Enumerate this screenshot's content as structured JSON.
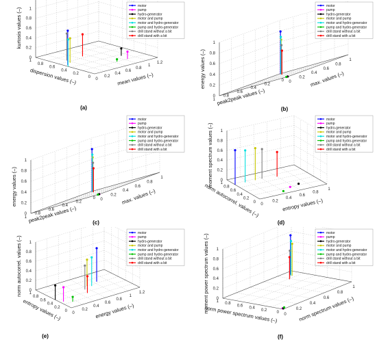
{
  "chart_data": [
    {
      "type": "scatter",
      "panel_label": "(a)",
      "xlabel": "mean values (–)",
      "ylabel": "dispersion values (–)",
      "zlabel": "kurtosis values (–)",
      "xlim": [
        0,
        1.2
      ],
      "ylim": [
        0,
        1
      ],
      "zlim": [
        0,
        1.2
      ],
      "xticks": [
        "0",
        "0.2",
        "0.4",
        "0.6",
        "0.8",
        "1",
        "1.2"
      ],
      "yticks": [
        "0",
        "0.2",
        "0.4",
        "0.6",
        "0.8",
        "1"
      ],
      "zticks": [
        "0",
        "0.2",
        "0.4",
        "0.6",
        "0.8",
        "1",
        "1.2"
      ],
      "grid": true,
      "legend_position": "top-right",
      "series": [
        {
          "name": "motor",
          "color": "#0000ff",
          "x": 0.05,
          "y": 0.5,
          "z": 0.7
        },
        {
          "name": "pump",
          "color": "#ff00ff",
          "x": 0.85,
          "y": 0.2,
          "z": 0.15
        },
        {
          "name": "hydro-generator",
          "color": "#000000",
          "x": 0.9,
          "y": 0.35,
          "z": 0.15
        },
        {
          "name": "motor and pump",
          "color": "#c8c800",
          "x": 0.15,
          "y": 0.55,
          "z": 0.5
        },
        {
          "name": "motor and hydro-generator",
          "color": "#00e0e0",
          "x": 0.0,
          "y": 0.45,
          "z": 0.55
        },
        {
          "name": "pump and hydro-generator",
          "color": "#00c000",
          "x": 0.65,
          "y": 0.2,
          "z": 0.05
        },
        {
          "name": "drill stand without a bit",
          "color": "#808080",
          "x": 0.2,
          "y": 0.65,
          "z": 0.55
        },
        {
          "name": "drill stand with a bit",
          "color": "#ff0000",
          "x": 0.5,
          "y": 0.65,
          "z": 0.45
        }
      ]
    },
    {
      "type": "scatter",
      "panel_label": "(b)",
      "xlabel": "max. values (–)",
      "ylabel": "peak2peak values (–)",
      "zlabel": "energy values (–)",
      "xlim": [
        0,
        1
      ],
      "ylim": [
        0,
        1
      ],
      "zlim": [
        0,
        1
      ],
      "xticks": [
        "0",
        "0.2",
        "0.4",
        "0.6",
        "0.8",
        "1"
      ],
      "yticks": [
        "0",
        "0.2",
        "0.4",
        "0.6",
        "0.8",
        "1"
      ],
      "zticks": [
        "0",
        "0.2",
        "0.4",
        "0.6",
        "0.8",
        "1"
      ],
      "grid": true,
      "legend_position": "top-right",
      "series": [
        {
          "name": "motor",
          "color": "#0000ff",
          "x": 0.9,
          "y": 0.9,
          "z": 0.8
        },
        {
          "name": "pump",
          "color": "#ff00ff",
          "x": 0.02,
          "y": 0.02,
          "z": 0.0
        },
        {
          "name": "hydro-generator",
          "color": "#000000",
          "x": 0.03,
          "y": 0.03,
          "z": 0.0
        },
        {
          "name": "motor and pump",
          "color": "#c8c800",
          "x": 0.82,
          "y": 0.82,
          "z": 0.65
        },
        {
          "name": "motor and hydro-generator",
          "color": "#00e0e0",
          "x": 0.86,
          "y": 0.86,
          "z": 0.7
        },
        {
          "name": "pump and hydro-generator",
          "color": "#00c000",
          "x": 0.02,
          "y": 0.04,
          "z": 0.0
        },
        {
          "name": "drill stand without a bit",
          "color": "#808080",
          "x": 0.78,
          "y": 0.78,
          "z": 0.55
        },
        {
          "name": "drill stand with a bit",
          "color": "#ff0000",
          "x": 0.72,
          "y": 0.72,
          "z": 0.45
        }
      ]
    },
    {
      "type": "scatter",
      "panel_label": "(c)",
      "xlabel": "max. values (–)",
      "ylabel": "peak2peak values (–)",
      "zlabel": "energy values (–)",
      "xlim": [
        0,
        1
      ],
      "ylim": [
        0,
        1
      ],
      "zlim": [
        0,
        1
      ],
      "xticks": [
        "0",
        "0.2",
        "0.4",
        "0.6",
        "0.8",
        "1"
      ],
      "yticks": [
        "0",
        "0.2",
        "0.4",
        "0.6",
        "0.8",
        "1"
      ],
      "zticks": [
        "0",
        "0.2",
        "0.4",
        "0.6",
        "0.8",
        "1"
      ],
      "grid": true,
      "legend_position": "top-right",
      "series": [
        {
          "name": "motor",
          "color": "#0000ff",
          "x": 0.9,
          "y": 0.9,
          "z": 0.8
        },
        {
          "name": "pump",
          "color": "#ff00ff",
          "x": 0.02,
          "y": 0.02,
          "z": 0.0
        },
        {
          "name": "hydro-generator",
          "color": "#000000",
          "x": 0.03,
          "y": 0.03,
          "z": 0.0
        },
        {
          "name": "motor and pump",
          "color": "#c8c800",
          "x": 0.82,
          "y": 0.82,
          "z": 0.65
        },
        {
          "name": "motor and hydro-generator",
          "color": "#00e0e0",
          "x": 0.86,
          "y": 0.86,
          "z": 0.7
        },
        {
          "name": "pump and hydro-generator",
          "color": "#00c000",
          "x": 0.02,
          "y": 0.04,
          "z": 0.0
        },
        {
          "name": "drill stand without a bit",
          "color": "#808080",
          "x": 0.78,
          "y": 0.78,
          "z": 0.55
        },
        {
          "name": "drill stand with a bit",
          "color": "#ff0000",
          "x": 0.72,
          "y": 0.72,
          "z": 0.45
        }
      ]
    },
    {
      "type": "scatter",
      "panel_label": "(d)",
      "xlabel": "entropy values (–)",
      "ylabel": "norm autocorrel. values (–)",
      "zlabel": "moment spectrum values (–)",
      "xlim": [
        0,
        1
      ],
      "ylim": [
        0,
        1
      ],
      "zlim": [
        0,
        1
      ],
      "xticks": [
        "0",
        "0.2",
        "0.4",
        "0.6",
        "0.8",
        "1"
      ],
      "yticks": [
        "0",
        "0.2",
        "0.4",
        "0.6",
        "0.8",
        "1"
      ],
      "zticks": [
        "0",
        "0.2",
        "0.4",
        "0.6",
        "0.8",
        "1"
      ],
      "grid": true,
      "legend_position": "top-right",
      "series": [
        {
          "name": "motor",
          "color": "#0000ff",
          "x": 0.0,
          "y": 0.75,
          "z": 0.7
        },
        {
          "name": "pump",
          "color": "#ff00ff",
          "x": 0.55,
          "y": 0.2,
          "z": 0.0
        },
        {
          "name": "hydro-generator",
          "color": "#000000",
          "x": 0.7,
          "y": 0.25,
          "z": 0.0
        },
        {
          "name": "motor and pump",
          "color": "#c8c800",
          "x": 0.3,
          "y": 0.75,
          "z": 0.65
        },
        {
          "name": "motor and hydro-generator",
          "color": "#00e0e0",
          "x": 0.15,
          "y": 0.75,
          "z": 0.65
        },
        {
          "name": "pump and hydro-generator",
          "color": "#00c000",
          "x": 0.4,
          "y": 0.1,
          "z": 0.0
        },
        {
          "name": "drill stand without a bit",
          "color": "#808080",
          "x": 0.4,
          "y": 0.75,
          "z": 0.6
        },
        {
          "name": "drill stand with a bit",
          "color": "#ff0000",
          "x": 0.6,
          "y": 0.7,
          "z": 0.5
        }
      ]
    },
    {
      "type": "scatter",
      "panel_label": "(e)",
      "xlabel": "energy values (–)",
      "ylabel": "entropy values (–)",
      "zlabel": "norm autocorrel. values (–)",
      "xlim": [
        0,
        1.2
      ],
      "ylim": [
        0,
        1
      ],
      "zlim": [
        0,
        1
      ],
      "xticks": [
        "0",
        "0.2",
        "0.4",
        "0.6",
        "0.8",
        "1",
        "1.2"
      ],
      "yticks": [
        "0",
        "0.2",
        "0.4",
        "0.6",
        "0.8",
        "1"
      ],
      "zticks": [
        "0",
        "0.2",
        "0.4",
        "0.6",
        "0.8",
        "1"
      ],
      "grid": true,
      "legend_position": "top-right",
      "series": [
        {
          "name": "motor",
          "color": "#0000ff",
          "x": 0.85,
          "y": 0.65,
          "z": 0.7
        },
        {
          "name": "pump",
          "color": "#ff00ff",
          "x": 0.05,
          "y": 0.3,
          "z": 0.3
        },
        {
          "name": "hydro-generator",
          "color": "#000000",
          "x": 0.0,
          "y": 0.45,
          "z": 0.3
        },
        {
          "name": "motor and pump",
          "color": "#c8c800",
          "x": 0.65,
          "y": 0.6,
          "z": 0.55
        },
        {
          "name": "motor and hydro-generator",
          "color": "#00e0e0",
          "x": 0.7,
          "y": 0.55,
          "z": 0.6
        },
        {
          "name": "pump and hydro-generator",
          "color": "#00c000",
          "x": 0.15,
          "y": 0.2,
          "z": 0.1
        },
        {
          "name": "drill stand without a bit",
          "color": "#808080",
          "x": 0.55,
          "y": 0.5,
          "z": 0.5
        },
        {
          "name": "drill stand with a bit",
          "color": "#ff0000",
          "x": 0.5,
          "y": 0.35,
          "z": 0.35
        }
      ]
    },
    {
      "type": "scatter",
      "panel_label": "(f)",
      "xlabel": "norm spectrum values (–)",
      "ylabel": "norm power spectrum values (–)",
      "zlabel": "moment power spectrum values (–)",
      "xlim": [
        0,
        1
      ],
      "ylim": [
        0,
        1
      ],
      "zlim": [
        0,
        1
      ],
      "xticks": [
        "0",
        "0.2",
        "0.4",
        "0.6",
        "0.8",
        "1"
      ],
      "yticks": [
        "0",
        "0.2",
        "0.4",
        "0.6",
        "0.8",
        "1"
      ],
      "zticks": [
        "0",
        "0.2",
        "0.4",
        "0.6",
        "0.8",
        "1"
      ],
      "grid": true,
      "legend_position": "top-right",
      "series": [
        {
          "name": "motor",
          "color": "#0000ff",
          "x": 0.9,
          "y": 0.9,
          "z": 0.8
        },
        {
          "name": "pump",
          "color": "#ff00ff",
          "x": 0.02,
          "y": 0.03,
          "z": 0.0
        },
        {
          "name": "hydro-generator",
          "color": "#000000",
          "x": 0.02,
          "y": 0.02,
          "z": 0.0
        },
        {
          "name": "motor and pump",
          "color": "#c8c800",
          "x": 0.88,
          "y": 0.85,
          "z": 0.65
        },
        {
          "name": "motor and hydro-generator",
          "color": "#00e0e0",
          "x": 0.88,
          "y": 0.87,
          "z": 0.7
        },
        {
          "name": "pump and hydro-generator",
          "color": "#00c000",
          "x": 0.05,
          "y": 0.04,
          "z": 0.0
        },
        {
          "name": "drill stand without a bit",
          "color": "#808080",
          "x": 0.82,
          "y": 0.82,
          "z": 0.55
        },
        {
          "name": "drill stand with a bit",
          "color": "#ff0000",
          "x": 0.78,
          "y": 0.78,
          "z": 0.45
        }
      ]
    }
  ]
}
